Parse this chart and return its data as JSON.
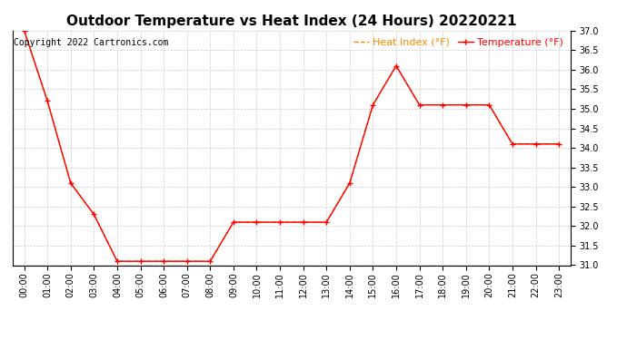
{
  "title": "Outdoor Temperature vs Heat Index (24 Hours) 20220221",
  "copyright_text": "Copyright 2022 Cartronics.com",
  "legend_heat_index": "Heat Index (°F)",
  "legend_temperature": "Temperature (°F)",
  "hours": [
    "00:00",
    "01:00",
    "02:00",
    "03:00",
    "04:00",
    "05:00",
    "06:00",
    "07:00",
    "08:00",
    "09:00",
    "10:00",
    "11:00",
    "12:00",
    "13:00",
    "14:00",
    "15:00",
    "16:00",
    "17:00",
    "18:00",
    "19:00",
    "20:00",
    "21:00",
    "22:00",
    "23:00"
  ],
  "temperature": [
    37.0,
    35.2,
    33.1,
    32.3,
    31.1,
    31.1,
    31.1,
    31.1,
    31.1,
    32.1,
    32.1,
    32.1,
    32.1,
    32.1,
    33.1,
    35.1,
    36.1,
    35.1,
    35.1,
    35.1,
    35.1,
    34.1,
    34.1,
    34.1
  ],
  "heat_index": [
    37.0,
    35.2,
    33.1,
    32.3,
    31.1,
    31.1,
    31.1,
    31.1,
    31.1,
    32.1,
    32.1,
    32.1,
    32.1,
    32.1,
    33.1,
    35.1,
    36.1,
    35.1,
    35.1,
    35.1,
    35.1,
    34.1,
    34.1,
    34.1
  ],
  "ylim_min": 31.0,
  "ylim_max": 37.0,
  "ytick_step": 0.5,
  "temp_color": "#ff0000",
  "heat_index_color": "#ff8800",
  "grid_color": "#cccccc",
  "background_color": "#ffffff",
  "title_fontsize": 11,
  "legend_fontsize": 8,
  "copyright_fontsize": 7,
  "axis_label_fontsize": 7
}
